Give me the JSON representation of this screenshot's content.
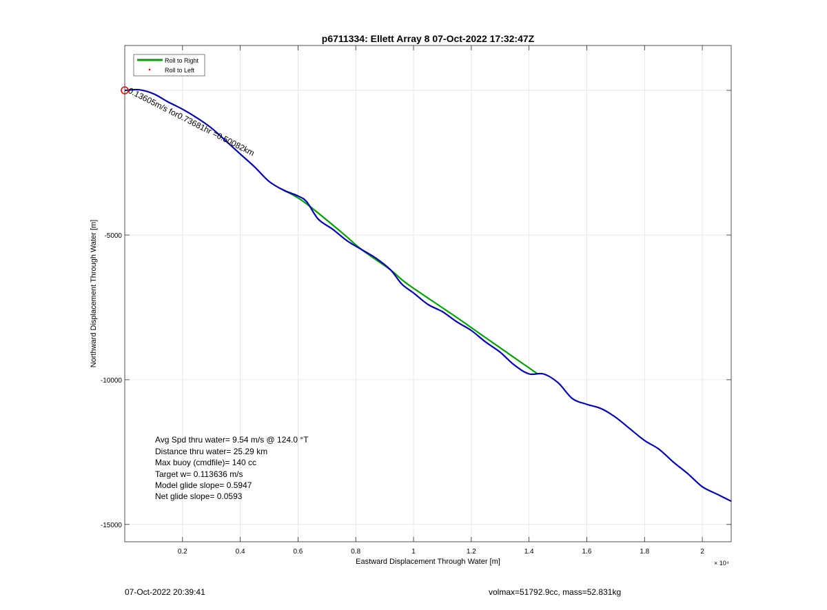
{
  "chart_data": {
    "type": "line",
    "title": "p6711334: Ellett Array 8 07-Oct-2022 17:32:47Z",
    "xlabel": "Eastward Displacement Through Water [m]",
    "ylabel": "Northward Displacement Through Water [m]",
    "x_exponent_label": "× 10⁴",
    "xlim": [
      0,
      21000
    ],
    "ylim": [
      -15600,
      1550
    ],
    "grid": true,
    "x_ticks": [
      2000,
      4000,
      6000,
      8000,
      10000,
      12000,
      14000,
      16000,
      18000,
      20000
    ],
    "x_tick_labels": [
      "0.2",
      "0.4",
      "0.6",
      "0.8",
      "1",
      "1.2",
      "1.4",
      "1.6",
      "1.8",
      "2"
    ],
    "y_ticks": [
      0,
      -5000,
      -10000,
      -15000
    ],
    "y_tick_labels": [
      "",
      "-5000",
      "-10000",
      "-15000"
    ],
    "legend": {
      "position": "top-left",
      "entries": [
        {
          "label": "Roll to Right",
          "color": "#00a000",
          "style": "line"
        },
        {
          "label": "Roll to Left",
          "color": "#e00000",
          "style": "dot"
        }
      ]
    },
    "series": [
      {
        "color": "#0000b0",
        "points": [
          [
            0,
            0
          ],
          [
            500,
            20
          ],
          [
            1000,
            -120
          ],
          [
            1500,
            -400
          ],
          [
            2000,
            -650
          ],
          [
            2500,
            -950
          ],
          [
            3000,
            -1300
          ],
          [
            3500,
            -1750
          ],
          [
            4000,
            -2200
          ],
          [
            4500,
            -2650
          ],
          [
            5000,
            -3150
          ],
          [
            5500,
            -3450
          ],
          [
            6000,
            -3650
          ],
          [
            6300,
            -3850
          ],
          [
            6700,
            -4450
          ],
          [
            7200,
            -4800
          ],
          [
            7700,
            -5200
          ],
          [
            8200,
            -5500
          ],
          [
            8700,
            -5800
          ],
          [
            9200,
            -6200
          ],
          [
            9600,
            -6700
          ],
          [
            10000,
            -7000
          ],
          [
            10500,
            -7400
          ],
          [
            11000,
            -7650
          ],
          [
            11500,
            -8000
          ],
          [
            12000,
            -8300
          ],
          [
            12500,
            -8700
          ],
          [
            13000,
            -9050
          ],
          [
            13500,
            -9500
          ],
          [
            14000,
            -9800
          ],
          [
            14500,
            -9800
          ],
          [
            15000,
            -10100
          ],
          [
            15500,
            -10650
          ],
          [
            16000,
            -10850
          ],
          [
            16500,
            -11000
          ],
          [
            17000,
            -11300
          ],
          [
            17500,
            -11700
          ],
          [
            18000,
            -12100
          ],
          [
            18500,
            -12400
          ],
          [
            19000,
            -12850
          ],
          [
            19500,
            -13250
          ],
          [
            20000,
            -13700
          ],
          [
            20500,
            -13950
          ],
          [
            21000,
            -14200
          ]
        ]
      },
      {
        "color": "#00a000",
        "points": [
          [
            5500,
            -3450
          ],
          [
            6200,
            -3850
          ],
          [
            7500,
            -4900
          ],
          [
            8200,
            -5500
          ],
          [
            9200,
            -6200
          ],
          [
            9800,
            -6700
          ],
          [
            11500,
            -7850
          ],
          [
            12500,
            -8550
          ],
          [
            14300,
            -9800
          ]
        ]
      }
    ],
    "markers": [
      {
        "x": 0,
        "y": 0,
        "color": "#e00000",
        "shape": "circle"
      }
    ],
    "annotations": [
      {
        "text": "0.13605m/s for0.73681hr =0.50082km",
        "x": 0,
        "y": 0
      }
    ],
    "info_lines": [
      "Avg Spd thru water=  9.54 m/s @ 124.0 °T",
      "Distance thru water= 25.29 km",
      "Max buoy (cmdfile)= 140 cc",
      "Target w= 0.113636 m/s",
      "Model glide slope= 0.5947",
      "Net glide slope= 0.0593"
    ]
  },
  "footer": {
    "timestamp": "07-Oct-2022 20:39:41",
    "volume_mass": "volmax=51792.9cc, mass=52.831kg"
  }
}
